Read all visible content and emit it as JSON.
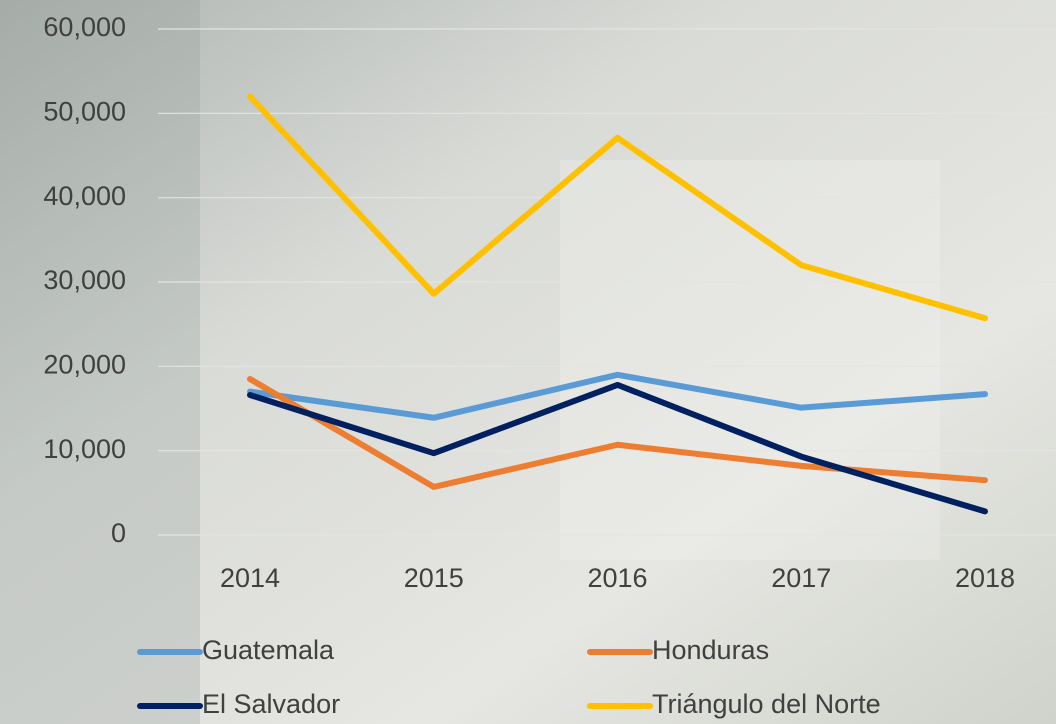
{
  "chart_data": {
    "type": "line",
    "categories": [
      "2014",
      "2015",
      "2016",
      "2017",
      "2018"
    ],
    "series": [
      {
        "name": "Guatemala",
        "color": "#5b9bd5",
        "values": [
          17000,
          13900,
          19000,
          15100,
          16700
        ]
      },
      {
        "name": "Honduras",
        "color": "#ed7d31",
        "values": [
          18500,
          5700,
          10700,
          8200,
          6500
        ]
      },
      {
        "name": "El Salvador",
        "color": "#002060",
        "values": [
          16600,
          9700,
          17800,
          9300,
          2800
        ]
      },
      {
        "name": "Triángulo del Norte",
        "color": "#ffc000",
        "values": [
          52000,
          28600,
          47100,
          32000,
          25700
        ]
      }
    ],
    "ylim": [
      0,
      60000
    ],
    "yticks": [
      0,
      {
        "value": 10000,
        "label": "10,000"
      },
      {
        "value": 20000,
        "label": "20,000"
      },
      {
        "value": 30000,
        "label": "30,000"
      },
      {
        "value": 40000,
        "label": "40,000"
      },
      {
        "value": 50000,
        "label": "50,000"
      },
      {
        "value": 60000,
        "label": "60,000"
      }
    ],
    "grid": true
  }
}
